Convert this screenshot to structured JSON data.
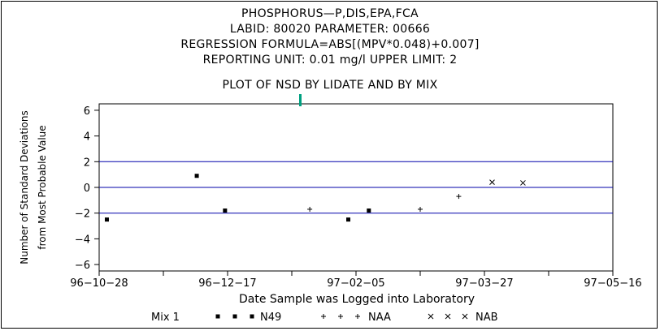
{
  "header": {
    "line1": "PHOSPHORUS—P,DIS,EPA,FCA",
    "line2": "LABID: 80020 PARAMETER: 00666",
    "line3": "REGRESSION FORMULA=ABS[(MPV*0.048)+0.007]",
    "line4": "REPORTING UNIT: 0.01 mg/l   UPPER LIMIT: 2"
  },
  "colors": {
    "limit_line": "#0000aa",
    "marker": "#000000",
    "tick_mark": "#00a080"
  },
  "chart_data": {
    "type": "scatter",
    "title": "PLOT OF NSD BY LIDATE AND BY MIX",
    "xlabel": "Date Sample was Logged into Laboratory",
    "ylabel_line1": "Number of Standard Deviations",
    "ylabel_line2": "from Most Probable Value",
    "xlim": [
      "96-10-28",
      "97-05-16"
    ],
    "x_tick_labels": [
      "96-10-28",
      "96-12-17",
      "97-02-05",
      "97-03-27",
      "97-05-16"
    ],
    "x_ticks": [
      "96-10-28",
      "96-11-22",
      "96-12-17",
      "97-01-11",
      "97-02-05",
      "97-03-02",
      "97-03-27",
      "97-04-21",
      "97-05-16"
    ],
    "ylim": [
      -6.5,
      6.5
    ],
    "y_ticks": [
      -6,
      -4,
      -2,
      0,
      2,
      4,
      6
    ],
    "y_tick_labels": [
      "-6",
      "-4",
      "-2",
      "0",
      "2",
      "4",
      "6"
    ],
    "reference_lines": [
      2,
      0,
      -2
    ],
    "legend": {
      "title": "Mix 1",
      "position": "bottom",
      "entries": [
        {
          "symbol": "●",
          "label": "N49"
        },
        {
          "symbol": "+",
          "label": "NAA"
        },
        {
          "symbol": "×",
          "label": "NAB"
        }
      ]
    },
    "series": [
      {
        "name": "N49",
        "symbol": "dot",
        "points": [
          {
            "x": "96-10-31",
            "y": -2.5
          },
          {
            "x": "96-12-05",
            "y": 0.9
          },
          {
            "x": "96-12-16",
            "y": -1.8
          },
          {
            "x": "97-02-02",
            "y": -2.5
          },
          {
            "x": "97-02-10",
            "y": -1.8
          }
        ]
      },
      {
        "name": "NAA",
        "symbol": "plus",
        "points": [
          {
            "x": "97-01-18",
            "y": -1.7
          },
          {
            "x": "97-03-02",
            "y": -1.7
          },
          {
            "x": "97-03-17",
            "y": -0.7
          }
        ]
      },
      {
        "name": "NAB",
        "symbol": "x",
        "points": [
          {
            "x": "97-03-30",
            "y": 0.4
          },
          {
            "x": "97-04-11",
            "y": 0.35
          }
        ]
      }
    ]
  }
}
